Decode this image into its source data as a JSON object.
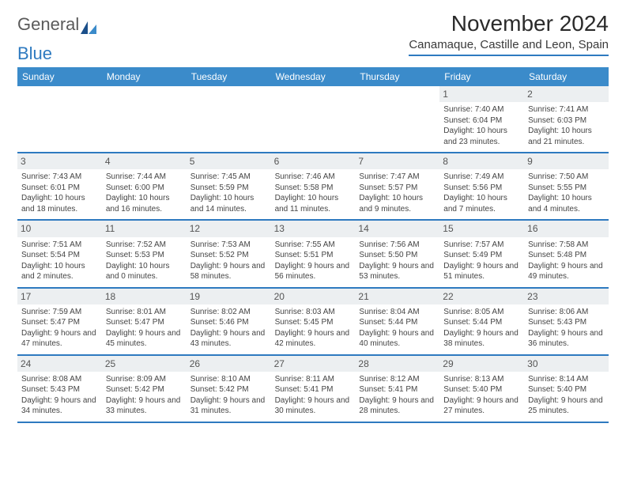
{
  "logo": {
    "text1": "General",
    "text2": "Blue"
  },
  "title": "November 2024",
  "location": "Canamaque, Castille and Leon, Spain",
  "colors": {
    "header_bg": "#3b8bca",
    "header_text": "#ffffff",
    "accent": "#2e7ac0",
    "daynum_bg": "#eceff1",
    "text": "#3a3a3a",
    "page_bg": "#ffffff"
  },
  "typography": {
    "title_fontsize": 28,
    "location_fontsize": 15,
    "dayheader_fontsize": 12,
    "daynum_fontsize": 12,
    "info_fontsize": 10
  },
  "layout": {
    "columns": 7,
    "rows": 5
  },
  "day_names": [
    "Sunday",
    "Monday",
    "Tuesday",
    "Wednesday",
    "Thursday",
    "Friday",
    "Saturday"
  ],
  "weeks": [
    [
      {
        "empty": true
      },
      {
        "empty": true
      },
      {
        "empty": true
      },
      {
        "empty": true
      },
      {
        "empty": true
      },
      {
        "num": "1",
        "sunrise": "Sunrise: 7:40 AM",
        "sunset": "Sunset: 6:04 PM",
        "daylight": "Daylight: 10 hours and 23 minutes."
      },
      {
        "num": "2",
        "sunrise": "Sunrise: 7:41 AM",
        "sunset": "Sunset: 6:03 PM",
        "daylight": "Daylight: 10 hours and 21 minutes."
      }
    ],
    [
      {
        "num": "3",
        "sunrise": "Sunrise: 7:43 AM",
        "sunset": "Sunset: 6:01 PM",
        "daylight": "Daylight: 10 hours and 18 minutes."
      },
      {
        "num": "4",
        "sunrise": "Sunrise: 7:44 AM",
        "sunset": "Sunset: 6:00 PM",
        "daylight": "Daylight: 10 hours and 16 minutes."
      },
      {
        "num": "5",
        "sunrise": "Sunrise: 7:45 AM",
        "sunset": "Sunset: 5:59 PM",
        "daylight": "Daylight: 10 hours and 14 minutes."
      },
      {
        "num": "6",
        "sunrise": "Sunrise: 7:46 AM",
        "sunset": "Sunset: 5:58 PM",
        "daylight": "Daylight: 10 hours and 11 minutes."
      },
      {
        "num": "7",
        "sunrise": "Sunrise: 7:47 AM",
        "sunset": "Sunset: 5:57 PM",
        "daylight": "Daylight: 10 hours and 9 minutes."
      },
      {
        "num": "8",
        "sunrise": "Sunrise: 7:49 AM",
        "sunset": "Sunset: 5:56 PM",
        "daylight": "Daylight: 10 hours and 7 minutes."
      },
      {
        "num": "9",
        "sunrise": "Sunrise: 7:50 AM",
        "sunset": "Sunset: 5:55 PM",
        "daylight": "Daylight: 10 hours and 4 minutes."
      }
    ],
    [
      {
        "num": "10",
        "sunrise": "Sunrise: 7:51 AM",
        "sunset": "Sunset: 5:54 PM",
        "daylight": "Daylight: 10 hours and 2 minutes."
      },
      {
        "num": "11",
        "sunrise": "Sunrise: 7:52 AM",
        "sunset": "Sunset: 5:53 PM",
        "daylight": "Daylight: 10 hours and 0 minutes."
      },
      {
        "num": "12",
        "sunrise": "Sunrise: 7:53 AM",
        "sunset": "Sunset: 5:52 PM",
        "daylight": "Daylight: 9 hours and 58 minutes."
      },
      {
        "num": "13",
        "sunrise": "Sunrise: 7:55 AM",
        "sunset": "Sunset: 5:51 PM",
        "daylight": "Daylight: 9 hours and 56 minutes."
      },
      {
        "num": "14",
        "sunrise": "Sunrise: 7:56 AM",
        "sunset": "Sunset: 5:50 PM",
        "daylight": "Daylight: 9 hours and 53 minutes."
      },
      {
        "num": "15",
        "sunrise": "Sunrise: 7:57 AM",
        "sunset": "Sunset: 5:49 PM",
        "daylight": "Daylight: 9 hours and 51 minutes."
      },
      {
        "num": "16",
        "sunrise": "Sunrise: 7:58 AM",
        "sunset": "Sunset: 5:48 PM",
        "daylight": "Daylight: 9 hours and 49 minutes."
      }
    ],
    [
      {
        "num": "17",
        "sunrise": "Sunrise: 7:59 AM",
        "sunset": "Sunset: 5:47 PM",
        "daylight": "Daylight: 9 hours and 47 minutes."
      },
      {
        "num": "18",
        "sunrise": "Sunrise: 8:01 AM",
        "sunset": "Sunset: 5:47 PM",
        "daylight": "Daylight: 9 hours and 45 minutes."
      },
      {
        "num": "19",
        "sunrise": "Sunrise: 8:02 AM",
        "sunset": "Sunset: 5:46 PM",
        "daylight": "Daylight: 9 hours and 43 minutes."
      },
      {
        "num": "20",
        "sunrise": "Sunrise: 8:03 AM",
        "sunset": "Sunset: 5:45 PM",
        "daylight": "Daylight: 9 hours and 42 minutes."
      },
      {
        "num": "21",
        "sunrise": "Sunrise: 8:04 AM",
        "sunset": "Sunset: 5:44 PM",
        "daylight": "Daylight: 9 hours and 40 minutes."
      },
      {
        "num": "22",
        "sunrise": "Sunrise: 8:05 AM",
        "sunset": "Sunset: 5:44 PM",
        "daylight": "Daylight: 9 hours and 38 minutes."
      },
      {
        "num": "23",
        "sunrise": "Sunrise: 8:06 AM",
        "sunset": "Sunset: 5:43 PM",
        "daylight": "Daylight: 9 hours and 36 minutes."
      }
    ],
    [
      {
        "num": "24",
        "sunrise": "Sunrise: 8:08 AM",
        "sunset": "Sunset: 5:43 PM",
        "daylight": "Daylight: 9 hours and 34 minutes."
      },
      {
        "num": "25",
        "sunrise": "Sunrise: 8:09 AM",
        "sunset": "Sunset: 5:42 PM",
        "daylight": "Daylight: 9 hours and 33 minutes."
      },
      {
        "num": "26",
        "sunrise": "Sunrise: 8:10 AM",
        "sunset": "Sunset: 5:42 PM",
        "daylight": "Daylight: 9 hours and 31 minutes."
      },
      {
        "num": "27",
        "sunrise": "Sunrise: 8:11 AM",
        "sunset": "Sunset: 5:41 PM",
        "daylight": "Daylight: 9 hours and 30 minutes."
      },
      {
        "num": "28",
        "sunrise": "Sunrise: 8:12 AM",
        "sunset": "Sunset: 5:41 PM",
        "daylight": "Daylight: 9 hours and 28 minutes."
      },
      {
        "num": "29",
        "sunrise": "Sunrise: 8:13 AM",
        "sunset": "Sunset: 5:40 PM",
        "daylight": "Daylight: 9 hours and 27 minutes."
      },
      {
        "num": "30",
        "sunrise": "Sunrise: 8:14 AM",
        "sunset": "Sunset: 5:40 PM",
        "daylight": "Daylight: 9 hours and 25 minutes."
      }
    ]
  ]
}
